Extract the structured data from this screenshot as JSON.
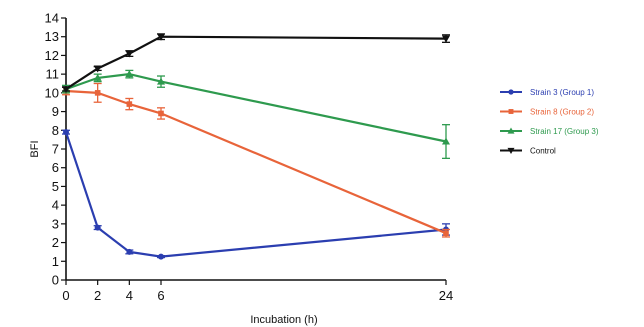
{
  "chart_data": {
    "type": "line",
    "xlabel": "Incubation (h)",
    "ylabel": "BFI",
    "xlim": [
      0,
      24
    ],
    "ylim": [
      0,
      14
    ],
    "x_ticks": [
      "0",
      "2",
      "4",
      "6",
      "24"
    ],
    "y_ticks": [
      "0",
      "1",
      "2",
      "3",
      "4",
      "5",
      "6",
      "7",
      "8",
      "9",
      "10",
      "11",
      "12",
      "13",
      "14"
    ],
    "x": [
      0,
      2,
      4,
      6,
      24
    ],
    "legend_position": "right",
    "grid": false,
    "series": [
      {
        "name": "Strain 3 (Group 1)",
        "color": "#2b3eb0",
        "marker": "circle",
        "values": [
          7.9,
          2.8,
          1.5,
          1.25,
          2.7
        ],
        "errors": [
          0.1,
          0.1,
          0.1,
          0.05,
          0.3
        ]
      },
      {
        "name": "Strain 8 (Group 2)",
        "color": "#e8643a",
        "marker": "square",
        "values": [
          10.1,
          10.0,
          9.4,
          8.9,
          2.5
        ],
        "errors": [
          0.2,
          0.5,
          0.3,
          0.3,
          0.2
        ]
      },
      {
        "name": "Strain 17 (Group 3)",
        "color": "#2e9a4e",
        "marker": "triangle-up",
        "values": [
          10.2,
          10.8,
          11.0,
          10.6,
          7.4
        ],
        "errors": [
          0.2,
          0.2,
          0.2,
          0.3,
          0.9
        ]
      },
      {
        "name": "Control",
        "color": "#111111",
        "marker": "triangle-down",
        "values": [
          10.2,
          11.3,
          12.1,
          13.0,
          12.9
        ],
        "errors": [
          0.1,
          0.1,
          0.15,
          0.15,
          0.2
        ]
      }
    ]
  }
}
